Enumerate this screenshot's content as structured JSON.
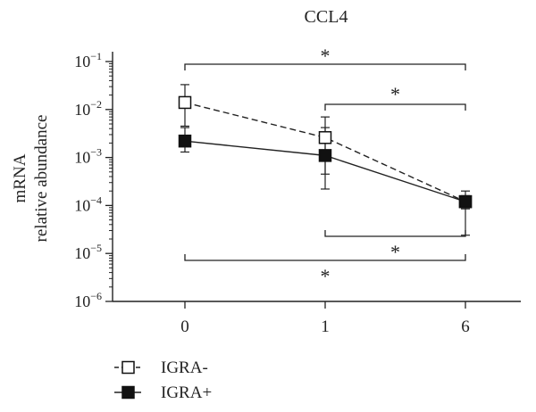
{
  "chart_data": {
    "type": "line",
    "title": "CCL4",
    "xlabel": "",
    "ylabel": [
      "mRNA",
      "relative abundance"
    ],
    "y_scale": "log",
    "ylim": [
      1e-06,
      0.1
    ],
    "y_ticks": [
      {
        "value": 0.1,
        "base": "10",
        "exp": "−1"
      },
      {
        "value": 0.01,
        "base": "10",
        "exp": "−2"
      },
      {
        "value": 0.001,
        "base": "10",
        "exp": "−3"
      },
      {
        "value": 0.0001,
        "base": "10",
        "exp": "−4"
      },
      {
        "value": 1e-05,
        "base": "10",
        "exp": "−5"
      },
      {
        "value": 1e-06,
        "base": "10",
        "exp": "−6"
      }
    ],
    "categories": [
      "0",
      "1",
      "6"
    ],
    "series": [
      {
        "name": "IGRA-",
        "marker": "open-square",
        "line_style": "dashed",
        "values": [
          0.014,
          0.0026,
          0.00012
        ],
        "err_low": [
          0.0045,
          0.00045,
          8.5e-05
        ],
        "err_high": [
          0.033,
          0.007,
          0.0002
        ]
      },
      {
        "name": "IGRA+",
        "marker": "filled-square",
        "line_style": "solid",
        "values": [
          0.0022,
          0.0011,
          0.00012
        ],
        "err_low": [
          0.0013,
          0.00022,
          2.4e-05
        ],
        "err_high": [
          0.0042,
          0.0042,
          0.00016
        ]
      }
    ],
    "significance": [
      {
        "from": "0",
        "to": "6",
        "label": "*"
      },
      {
        "from": "1",
        "to": "6",
        "label": "*"
      },
      {
        "from": "1",
        "to": "6",
        "label": "*"
      },
      {
        "from": "0",
        "to": "6",
        "label": "*"
      }
    ],
    "legend_position": "bottom-left",
    "grid": false
  }
}
